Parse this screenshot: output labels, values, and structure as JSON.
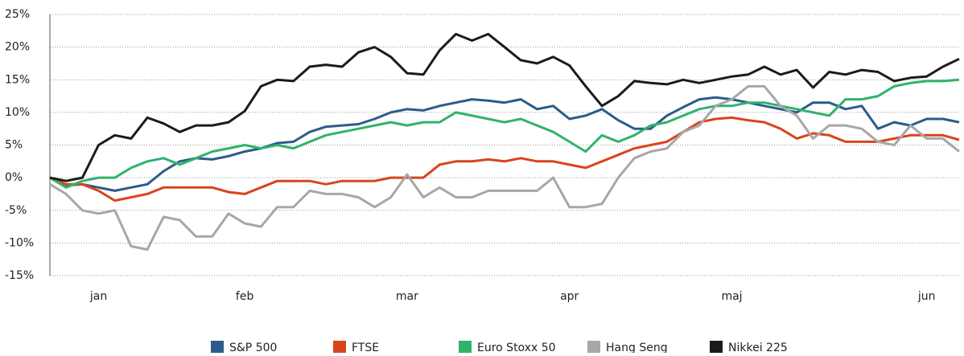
{
  "chart_data": {
    "type": "line",
    "categories": [
      null,
      null,
      null,
      "jan",
      null,
      null,
      null,
      null,
      null,
      null,
      null,
      null,
      "feb",
      null,
      null,
      null,
      null,
      null,
      null,
      null,
      null,
      null,
      "mar",
      null,
      null,
      null,
      null,
      null,
      null,
      null,
      null,
      null,
      "apr",
      null,
      null,
      null,
      null,
      null,
      null,
      null,
      null,
      null,
      "maj",
      null,
      null,
      null,
      null,
      null,
      null,
      null,
      null,
      null,
      null,
      null,
      "jun",
      null,
      null
    ],
    "series": [
      {
        "name": "S&P 500",
        "color": "#2b5b8c",
        "values": [
          0,
          -1.2,
          -1,
          -1.5,
          -2,
          -1.5,
          -1,
          1,
          2.5,
          3,
          2.8,
          3.3,
          4,
          4.5,
          5.3,
          5.5,
          7,
          7.8,
          8,
          8.2,
          9,
          10,
          10.5,
          10.3,
          11,
          11.5,
          12,
          11.8,
          11.5,
          12,
          10.5,
          11,
          9,
          9.5,
          10.5,
          8.8,
          7.5,
          7.5,
          9.5,
          10.8,
          12,
          12.3,
          12,
          11.5,
          11,
          10.5,
          10,
          11.5,
          11.5,
          10.5,
          11,
          7.5,
          8.5,
          8,
          9,
          9,
          8.5
        ]
      },
      {
        "name": "FTSE",
        "color": "#d9441c",
        "values": [
          0,
          -1,
          -1,
          -2,
          -3.5,
          -3,
          -2.5,
          -1.5,
          -1.5,
          -1.5,
          -1.5,
          -2.2,
          -2.5,
          -1.5,
          -0.5,
          -0.5,
          -0.5,
          -1,
          -0.5,
          -0.5,
          -0.5,
          0,
          0,
          0,
          2,
          2.5,
          2.5,
          2.8,
          2.5,
          3,
          2.5,
          2.5,
          2,
          1.5,
          2.5,
          3.5,
          4.5,
          5,
          5.5,
          7,
          8.5,
          9,
          9.2,
          8.8,
          8.5,
          7.5,
          6,
          6.8,
          6.5,
          5.5,
          5.5,
          5.5,
          6,
          6.5,
          6.5,
          6.5,
          5.8
        ]
      },
      {
        "name": "Euro Stoxx 50",
        "color": "#2fb36b",
        "values": [
          0,
          -1.5,
          -0.5,
          0,
          0,
          1.5,
          2.5,
          3,
          2,
          3,
          4,
          4.5,
          5,
          4.5,
          5,
          4.5,
          5.5,
          6.5,
          7,
          7.5,
          8,
          8.5,
          8,
          8.5,
          8.5,
          10,
          9.5,
          9,
          8.5,
          9,
          8,
          7,
          5.5,
          4,
          6.5,
          5.5,
          6.5,
          8,
          8.5,
          9.5,
          10.5,
          11,
          11,
          11.5,
          11.5,
          11,
          10.5,
          10,
          9.5,
          12,
          12,
          12.5,
          14,
          14.5,
          14.8,
          14.8,
          15
        ]
      },
      {
        "name": "Hang Seng",
        "color": "#a7a7a9",
        "values": [
          -1,
          -2.5,
          -5,
          -5.5,
          -5,
          -10.5,
          -11,
          -6,
          -6.5,
          -9,
          -9,
          -5.5,
          -7,
          -7.5,
          -4.5,
          -4.5,
          -2,
          -2.5,
          -2.5,
          -3,
          -4.5,
          -3,
          0.5,
          -3,
          -1.5,
          -3,
          -3,
          -2,
          -2,
          -2,
          -2,
          0,
          -4.5,
          -4.5,
          -4,
          0,
          3,
          4,
          4.5,
          7,
          8,
          11,
          12,
          14,
          14,
          11,
          9.5,
          6,
          8,
          8,
          7.5,
          5.5,
          5,
          8,
          6,
          6,
          4
        ]
      },
      {
        "name": "Nikkei 225",
        "color": "#1b1b1b",
        "values": [
          0,
          -0.5,
          0,
          5,
          6.5,
          6,
          9.2,
          8.3,
          7,
          8,
          8,
          8.5,
          10.2,
          14,
          15,
          14.8,
          17,
          17.3,
          17,
          19.2,
          20,
          18.5,
          16,
          15.8,
          19.5,
          22,
          21,
          22,
          20,
          18,
          17.5,
          18.5,
          17.2,
          14,
          11,
          12.5,
          14.8,
          14.5,
          14.3,
          15,
          14.5,
          15,
          15.5,
          15.8,
          17,
          15.8,
          16.5,
          13.8,
          16.2,
          15.8,
          16.5,
          16.2,
          14.8,
          15.3,
          15.5,
          17,
          18.2
        ]
      }
    ],
    "ylim": [
      -15,
      25
    ],
    "yticks": [
      {
        "value": -15,
        "label": "-15%"
      },
      {
        "value": -10,
        "label": "-10%"
      },
      {
        "value": -5,
        "label": "-5%"
      },
      {
        "value": 0,
        "label": "0%"
      },
      {
        "value": 5,
        "label": "5%"
      },
      {
        "value": 10,
        "label": "10%"
      },
      {
        "value": 15,
        "label": "15%"
      },
      {
        "value": 20,
        "label": "20%"
      },
      {
        "value": 25,
        "label": "25%"
      }
    ],
    "grid": true,
    "legend": "bottom"
  }
}
